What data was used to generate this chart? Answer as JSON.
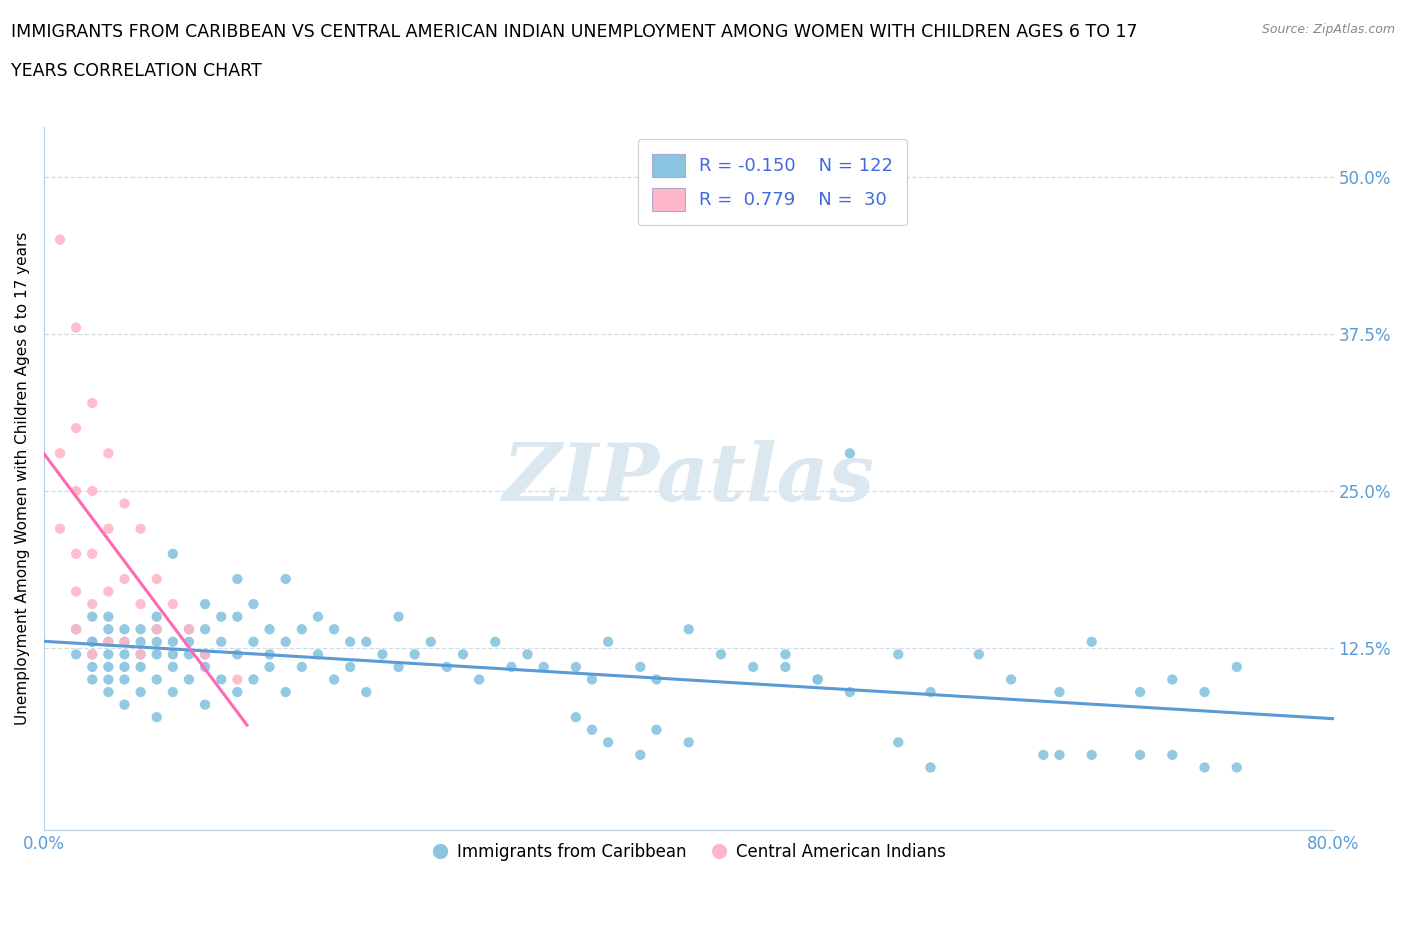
{
  "title_line1": "IMMIGRANTS FROM CARIBBEAN VS CENTRAL AMERICAN INDIAN UNEMPLOYMENT AMONG WOMEN WITH CHILDREN AGES 6 TO 17",
  "title_line2": "YEARS CORRELATION CHART",
  "source": "Source: ZipAtlas.com",
  "ylabel": "Unemployment Among Women with Children Ages 6 to 17 years",
  "xlim": [
    0.0,
    0.8
  ],
  "ylim": [
    -0.02,
    0.54
  ],
  "ytick_positions": [
    0.125,
    0.25,
    0.375,
    0.5
  ],
  "ytick_labels": [
    "12.5%",
    "25.0%",
    "37.5%",
    "50.0%"
  ],
  "blue_color": "#89c4e1",
  "pink_color": "#ffb6c8",
  "blue_line_color": "#5b9bd5",
  "pink_line_color": "#ff69b4",
  "blue_R": -0.15,
  "blue_N": 122,
  "pink_R": 0.779,
  "pink_N": 30,
  "legend_label_color": "#4169e1",
  "watermark": "ZIPatlas",
  "watermark_color": "#dce8f0",
  "background_color": "#ffffff",
  "grid_color": "#d0dce8",
  "blue_scatter_x": [
    0.02,
    0.02,
    0.03,
    0.03,
    0.03,
    0.03,
    0.03,
    0.03,
    0.04,
    0.04,
    0.04,
    0.04,
    0.04,
    0.04,
    0.04,
    0.05,
    0.05,
    0.05,
    0.05,
    0.05,
    0.05,
    0.06,
    0.06,
    0.06,
    0.06,
    0.06,
    0.07,
    0.07,
    0.07,
    0.07,
    0.07,
    0.07,
    0.08,
    0.08,
    0.08,
    0.08,
    0.08,
    0.09,
    0.09,
    0.09,
    0.09,
    0.1,
    0.1,
    0.1,
    0.1,
    0.1,
    0.11,
    0.11,
    0.11,
    0.12,
    0.12,
    0.12,
    0.12,
    0.13,
    0.13,
    0.13,
    0.14,
    0.14,
    0.14,
    0.15,
    0.15,
    0.15,
    0.16,
    0.16,
    0.17,
    0.17,
    0.18,
    0.18,
    0.19,
    0.19,
    0.2,
    0.2,
    0.21,
    0.22,
    0.22,
    0.23,
    0.24,
    0.25,
    0.26,
    0.27,
    0.28,
    0.29,
    0.3,
    0.31,
    0.33,
    0.34,
    0.35,
    0.37,
    0.38,
    0.4,
    0.42,
    0.44,
    0.46,
    0.48,
    0.5,
    0.53,
    0.55,
    0.58,
    0.6,
    0.63,
    0.65,
    0.68,
    0.7,
    0.72,
    0.74,
    0.65,
    0.68,
    0.7,
    0.72,
    0.74,
    0.62,
    0.63,
    0.53,
    0.55,
    0.38,
    0.4,
    0.33,
    0.34,
    0.35,
    0.37,
    0.46,
    0.48,
    0.5
  ],
  "blue_scatter_y": [
    0.12,
    0.14,
    0.1,
    0.13,
    0.12,
    0.15,
    0.11,
    0.13,
    0.09,
    0.12,
    0.14,
    0.11,
    0.13,
    0.1,
    0.15,
    0.08,
    0.11,
    0.13,
    0.12,
    0.14,
    0.1,
    0.09,
    0.12,
    0.14,
    0.11,
    0.13,
    0.07,
    0.1,
    0.12,
    0.14,
    0.13,
    0.15,
    0.09,
    0.11,
    0.13,
    0.2,
    0.12,
    0.1,
    0.12,
    0.14,
    0.13,
    0.08,
    0.11,
    0.14,
    0.12,
    0.16,
    0.1,
    0.13,
    0.15,
    0.09,
    0.12,
    0.15,
    0.18,
    0.1,
    0.13,
    0.16,
    0.11,
    0.14,
    0.12,
    0.09,
    0.13,
    0.18,
    0.11,
    0.14,
    0.12,
    0.15,
    0.1,
    0.14,
    0.11,
    0.13,
    0.09,
    0.13,
    0.12,
    0.11,
    0.15,
    0.12,
    0.13,
    0.11,
    0.12,
    0.1,
    0.13,
    0.11,
    0.12,
    0.11,
    0.11,
    0.1,
    0.13,
    0.11,
    0.1,
    0.14,
    0.12,
    0.11,
    0.12,
    0.1,
    0.28,
    0.12,
    0.09,
    0.12,
    0.1,
    0.09,
    0.13,
    0.09,
    0.1,
    0.09,
    0.11,
    0.04,
    0.04,
    0.04,
    0.03,
    0.03,
    0.04,
    0.04,
    0.05,
    0.03,
    0.06,
    0.05,
    0.07,
    0.06,
    0.05,
    0.04,
    0.11,
    0.1,
    0.09
  ],
  "pink_scatter_x": [
    0.01,
    0.01,
    0.01,
    0.02,
    0.02,
    0.02,
    0.02,
    0.02,
    0.02,
    0.03,
    0.03,
    0.03,
    0.03,
    0.03,
    0.04,
    0.04,
    0.04,
    0.04,
    0.05,
    0.05,
    0.05,
    0.06,
    0.06,
    0.06,
    0.07,
    0.07,
    0.08,
    0.09,
    0.1,
    0.12
  ],
  "pink_scatter_y": [
    0.45,
    0.28,
    0.22,
    0.38,
    0.3,
    0.25,
    0.2,
    0.17,
    0.14,
    0.32,
    0.25,
    0.2,
    0.16,
    0.12,
    0.28,
    0.22,
    0.17,
    0.13,
    0.24,
    0.18,
    0.13,
    0.22,
    0.16,
    0.12,
    0.18,
    0.14,
    0.16,
    0.14,
    0.12,
    0.1
  ]
}
